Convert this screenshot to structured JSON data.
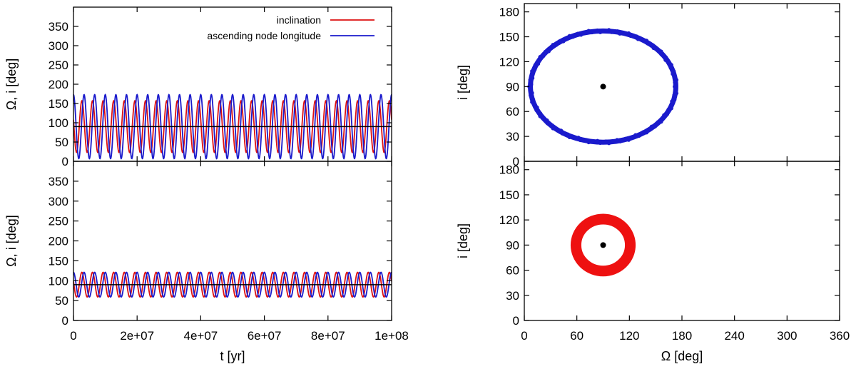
{
  "chart_data": [
    {
      "id": "time-top",
      "type": "line",
      "title": "",
      "xlabel": "",
      "ylabel": "Ω, i  [deg]",
      "xlim": [
        0,
        100000000
      ],
      "ylim": [
        0,
        400
      ],
      "xticks": [
        0,
        20000000,
        40000000,
        60000000,
        80000000,
        100000000
      ],
      "xtick_labels": [],
      "yticks": [
        0,
        50,
        100,
        150,
        200,
        250,
        300,
        350
      ],
      "ytick_labels": [
        "0",
        "50",
        "100",
        "150",
        "200",
        "250",
        "300",
        "350"
      ],
      "hline": 90,
      "legend": {
        "position": "top-right",
        "entries": [
          "inclination",
          "ascending node longitude"
        ]
      },
      "series": [
        {
          "name": "inclination",
          "color": "#dd1111",
          "shape": "oscillation",
          "center": 90,
          "amplitude": 67,
          "cycles": 30,
          "phase": 1.3
        },
        {
          "name": "ascending node longitude",
          "color": "#1a1acc",
          "shape": "oscillation",
          "center": 90,
          "amplitude": 83,
          "cycles": 30,
          "phase": 0
        }
      ]
    },
    {
      "id": "time-bottom",
      "type": "line",
      "title": "",
      "xlabel": "t  [yr]",
      "ylabel": "Ω, i  [deg]",
      "xlim": [
        0,
        100000000
      ],
      "ylim": [
        0,
        400
      ],
      "xticks": [
        0,
        20000000,
        40000000,
        60000000,
        80000000,
        100000000
      ],
      "xtick_labels": [
        "0",
        "2e+07",
        "4e+07",
        "6e+07",
        "8e+07",
        "1e+08"
      ],
      "yticks": [
        0,
        50,
        100,
        150,
        200,
        250,
        300,
        350
      ],
      "ytick_labels": [
        "0",
        "50",
        "100",
        "150",
        "200",
        "250",
        "300",
        "350"
      ],
      "hline": 90,
      "series": [
        {
          "name": "inclination",
          "color": "#dd1111",
          "shape": "oscillation",
          "center": 90,
          "amplitude": 31,
          "cycles": 30,
          "phase": 1.3
        },
        {
          "name": "ascending node longitude",
          "color": "#1a1acc",
          "shape": "oscillation",
          "center": 90,
          "amplitude": 31,
          "cycles": 30,
          "phase": 0
        }
      ]
    },
    {
      "id": "phase-top",
      "type": "scatter",
      "title": "",
      "xlabel": "",
      "ylabel": "i  [deg]",
      "xlim": [
        0,
        360
      ],
      "ylim": [
        0,
        190
      ],
      "xticks": [
        0,
        60,
        120,
        180,
        240,
        300,
        360
      ],
      "xtick_labels": [],
      "yticks": [
        0,
        30,
        60,
        90,
        120,
        150,
        180
      ],
      "ytick_labels": [
        "0",
        "30",
        "60",
        "90",
        "120",
        "150",
        "180"
      ],
      "center_point": [
        90,
        90
      ],
      "series": [
        {
          "name": "ascending node longitude",
          "color": "#1a1acc",
          "shape": "ring",
          "center": [
            90,
            90
          ],
          "radius_x": 83,
          "radius_y": 67,
          "thickness": 3
        }
      ]
    },
    {
      "id": "phase-bottom",
      "type": "scatter",
      "title": "",
      "xlabel": "Ω  [deg]",
      "ylabel": "i  [deg]",
      "xlim": [
        0,
        360
      ],
      "ylim": [
        0,
        190
      ],
      "xticks": [
        0,
        60,
        120,
        180,
        240,
        300,
        360
      ],
      "xtick_labels": [
        "0",
        "60",
        "120",
        "180",
        "240",
        "300",
        "360"
      ],
      "yticks": [
        0,
        30,
        60,
        90,
        120,
        150,
        180
      ],
      "ytick_labels": [
        "0",
        "30",
        "60",
        "90",
        "120",
        "150",
        "180"
      ],
      "center_point": [
        90,
        90
      ],
      "series": [
        {
          "name": "inclination",
          "color": "#ee1111",
          "shape": "ring",
          "center": [
            90,
            90
          ],
          "radius_x": 31,
          "radius_y": 31,
          "thickness": 11
        }
      ]
    }
  ]
}
